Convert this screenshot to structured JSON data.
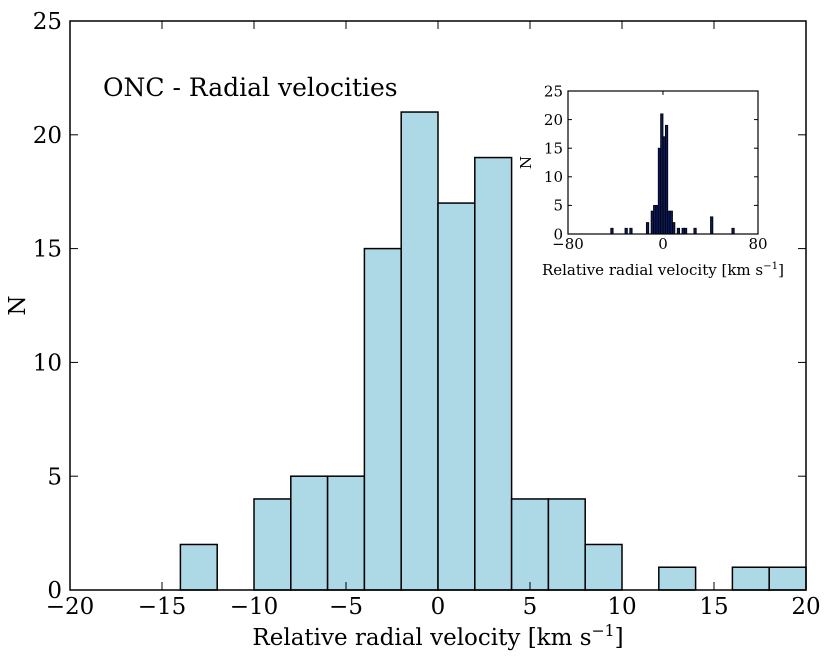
{
  "chart_data": [
    {
      "type": "bar",
      "title": "",
      "annotation": "ONC - Radial velocities",
      "xlabel": "Relative radial velocity [km s",
      "xlabel_sup": "−1",
      "xlabel_close": "]",
      "ylabel": "N",
      "xlim": [
        -20,
        20
      ],
      "ylim": [
        0,
        25
      ],
      "xticks": [
        -20,
        -15,
        -10,
        -5,
        0,
        5,
        10,
        15,
        20
      ],
      "xtick_labels": [
        "−20",
        "−15",
        "−10",
        "−5",
        "0",
        "5",
        "10",
        "15",
        "20"
      ],
      "yticks": [
        0,
        5,
        10,
        15,
        20,
        25
      ],
      "ytick_labels": [
        "0",
        "5",
        "10",
        "15",
        "20",
        "25"
      ],
      "bin_width": 2,
      "bins": [
        {
          "x0": -14,
          "count": 2
        },
        {
          "x0": -10,
          "count": 4
        },
        {
          "x0": -8,
          "count": 5
        },
        {
          "x0": -6,
          "count": 5
        },
        {
          "x0": -4,
          "count": 15
        },
        {
          "x0": -2,
          "count": 21
        },
        {
          "x0": 0,
          "count": 17
        },
        {
          "x0": 2,
          "count": 19
        },
        {
          "x0": 4,
          "count": 4
        },
        {
          "x0": 6,
          "count": 4
        },
        {
          "x0": 8,
          "count": 2
        },
        {
          "x0": 12,
          "count": 1
        },
        {
          "x0": 16,
          "count": 1
        },
        {
          "x0": 18,
          "count": 1
        }
      ],
      "bar_color": "#add8e6",
      "edge_color": "#000000"
    },
    {
      "type": "bar",
      "title": "",
      "xlabel": "Relative radial velocity [km s",
      "xlabel_sup": "−1",
      "xlabel_close": "]",
      "ylabel": "N",
      "xlim": [
        -80,
        80
      ],
      "ylim": [
        0,
        25
      ],
      "xticks": [
        -80,
        0,
        80
      ],
      "xtick_labels": [
        "−80",
        "0",
        "80"
      ],
      "yticks": [
        0,
        5,
        10,
        15,
        20,
        25
      ],
      "ytick_labels": [
        "0",
        "5",
        "10",
        "15",
        "20",
        "25"
      ],
      "bin_width": 2,
      "bins": [
        {
          "x0": -44,
          "count": 1
        },
        {
          "x0": -32,
          "count": 1
        },
        {
          "x0": -28,
          "count": 1
        },
        {
          "x0": -14,
          "count": 2
        },
        {
          "x0": -10,
          "count": 4
        },
        {
          "x0": -8,
          "count": 5
        },
        {
          "x0": -6,
          "count": 5
        },
        {
          "x0": -4,
          "count": 15
        },
        {
          "x0": -2,
          "count": 21
        },
        {
          "x0": 0,
          "count": 17
        },
        {
          "x0": 2,
          "count": 19
        },
        {
          "x0": 4,
          "count": 4
        },
        {
          "x0": 6,
          "count": 4
        },
        {
          "x0": 8,
          "count": 2
        },
        {
          "x0": 12,
          "count": 1
        },
        {
          "x0": 16,
          "count": 1
        },
        {
          "x0": 18,
          "count": 1
        },
        {
          "x0": 26,
          "count": 1
        },
        {
          "x0": 40,
          "count": 3
        },
        {
          "x0": 58,
          "count": 1
        }
      ],
      "bar_color": "#0b1a5c",
      "edge_color": "#000000"
    }
  ]
}
